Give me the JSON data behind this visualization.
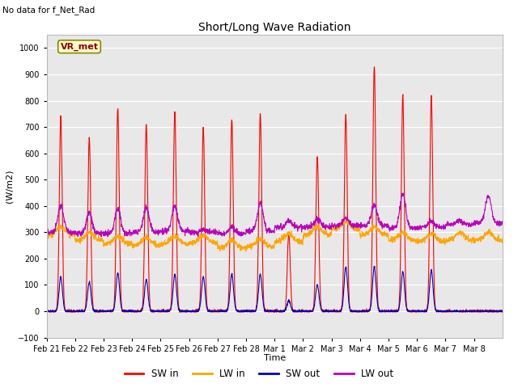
{
  "title": "Short/Long Wave Radiation",
  "subtitle": "No data for f_Net_Rad",
  "ylabel": "(W/m2)",
  "xlabel": "Time",
  "ylim": [
    -100,
    1050
  ],
  "yticks": [
    -100,
    0,
    100,
    200,
    300,
    400,
    500,
    600,
    700,
    800,
    900,
    1000
  ],
  "colors": {
    "SW_in": "#FF0000",
    "LW_in": "#FFA500",
    "SW_out": "#0000BB",
    "LW_out": "#BB00BB"
  },
  "legend_label": "VR_met",
  "bg_color": "#E8E8E8",
  "fig_bg": "#FFFFFF",
  "n_days": 16,
  "points_per_day": 144,
  "peaks_SW": [
    740,
    660,
    770,
    710,
    760,
    700,
    730,
    750,
    300,
    590,
    750,
    930,
    820,
    820,
    0,
    0
  ],
  "peaks_SWout": [
    130,
    110,
    145,
    120,
    140,
    130,
    140,
    140,
    40,
    100,
    170,
    170,
    150,
    155,
    0,
    0
  ],
  "tick_labels": [
    "Feb 21",
    "Feb 22",
    "Feb 23",
    "Feb 24",
    "Feb 25",
    "Feb 26",
    "Feb 27",
    "Feb 28",
    "Mar 1",
    "Mar 2",
    "Mar 3",
    "Mar 4",
    "Mar 5",
    "Mar 6",
    "Mar 7",
    "Mar 8"
  ]
}
